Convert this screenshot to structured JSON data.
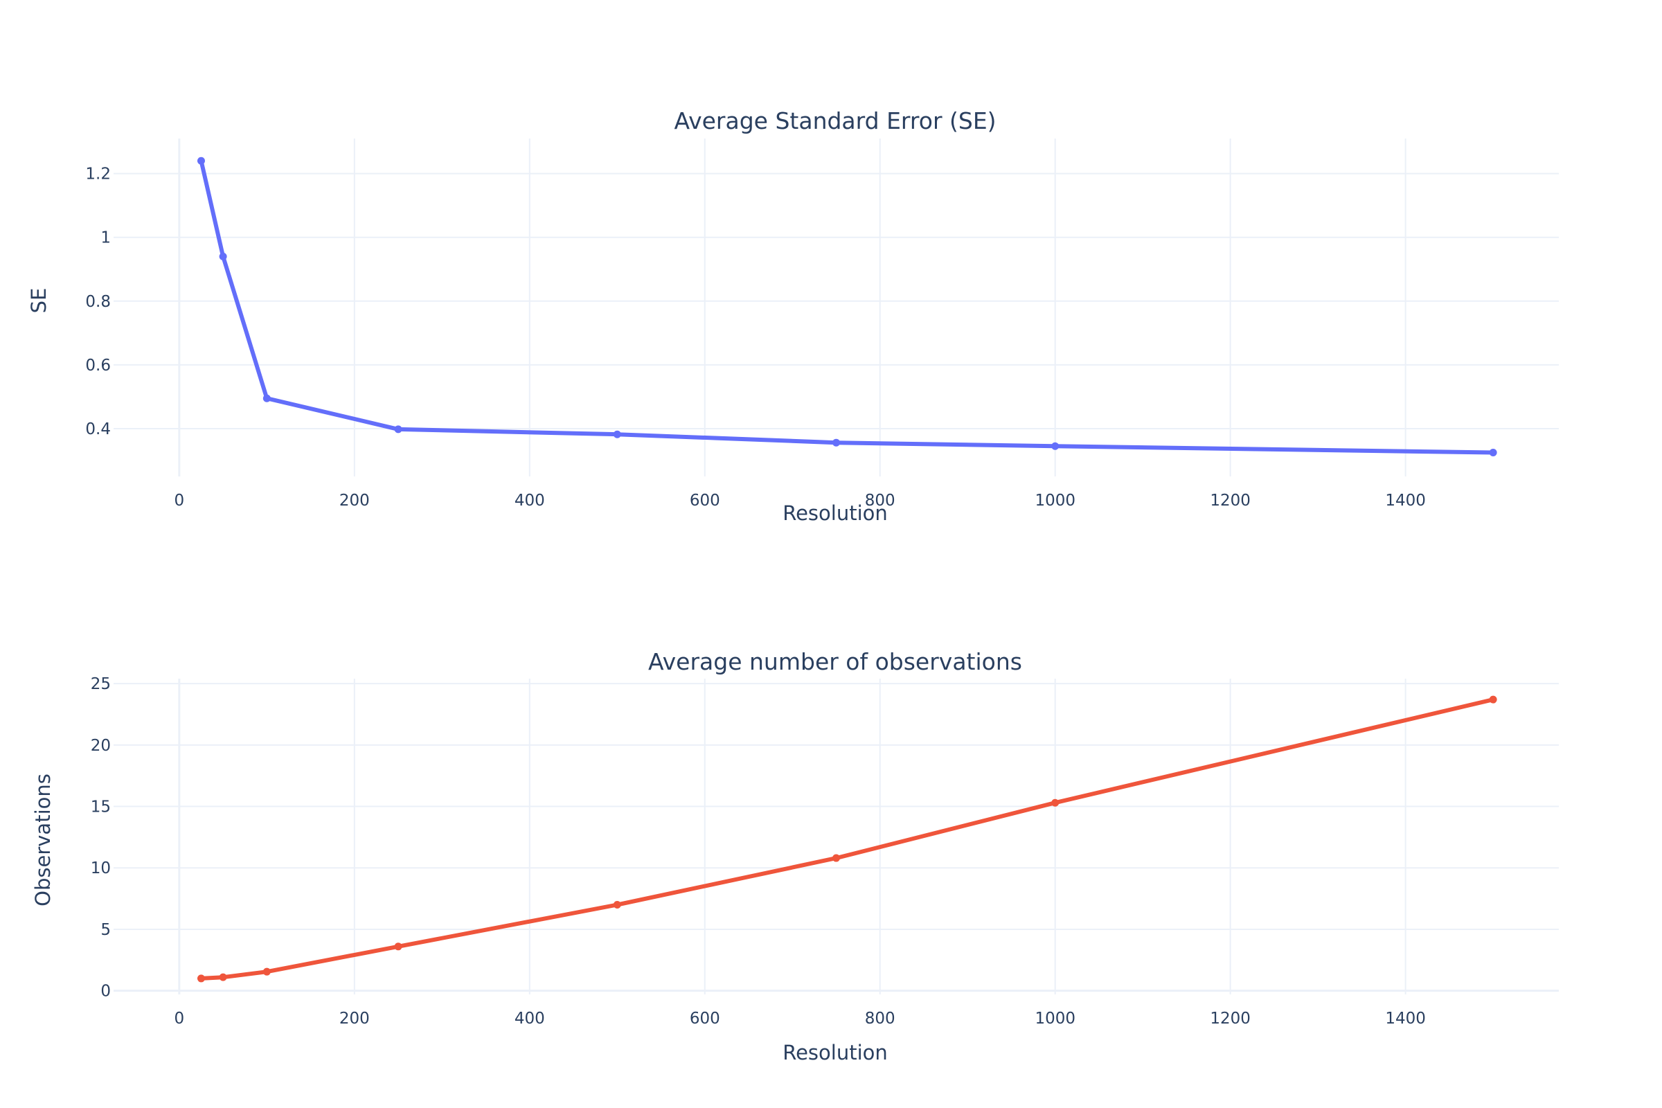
{
  "chart_data": [
    {
      "type": "line",
      "title": "Average Standard Error (SE)",
      "xlabel": "Resolution",
      "ylabel": "SE",
      "xlim": [
        -75,
        1575
      ],
      "ylim": [
        0.25,
        1.31
      ],
      "x_ticks": [
        0,
        200,
        400,
        600,
        800,
        1000,
        1200,
        1400
      ],
      "y_ticks": [
        0.4,
        0.6,
        0.8,
        1.0,
        1.2
      ],
      "y_tick_labels": [
        "0.4",
        "0.6",
        "0.8",
        "1",
        "1.2"
      ],
      "grid": true,
      "color": "#636efa",
      "series": [
        {
          "x": [
            25,
            50,
            100,
            250,
            500,
            750,
            1000,
            1500
          ],
          "values": [
            1.24,
            0.94,
            0.495,
            0.398,
            0.382,
            0.356,
            0.345,
            0.325
          ]
        }
      ]
    },
    {
      "type": "line",
      "title": "Average number of observations",
      "xlabel": "Resolution",
      "ylabel": "Observations",
      "xlim": [
        -75,
        1575
      ],
      "ylim": [
        -0.3,
        25.4
      ],
      "x_ticks": [
        0,
        200,
        400,
        600,
        800,
        1000,
        1200,
        1400
      ],
      "y_ticks": [
        0,
        5,
        10,
        15,
        20,
        25
      ],
      "y_tick_labels": [
        "0",
        "5",
        "10",
        "15",
        "20",
        "25"
      ],
      "grid": true,
      "color": "#ef553b",
      "series": [
        {
          "x": [
            25,
            50,
            100,
            250,
            500,
            750,
            1000,
            1500
          ],
          "values": [
            1.0,
            1.1,
            1.55,
            3.6,
            7.0,
            10.8,
            15.3,
            23.7
          ]
        }
      ]
    }
  ]
}
